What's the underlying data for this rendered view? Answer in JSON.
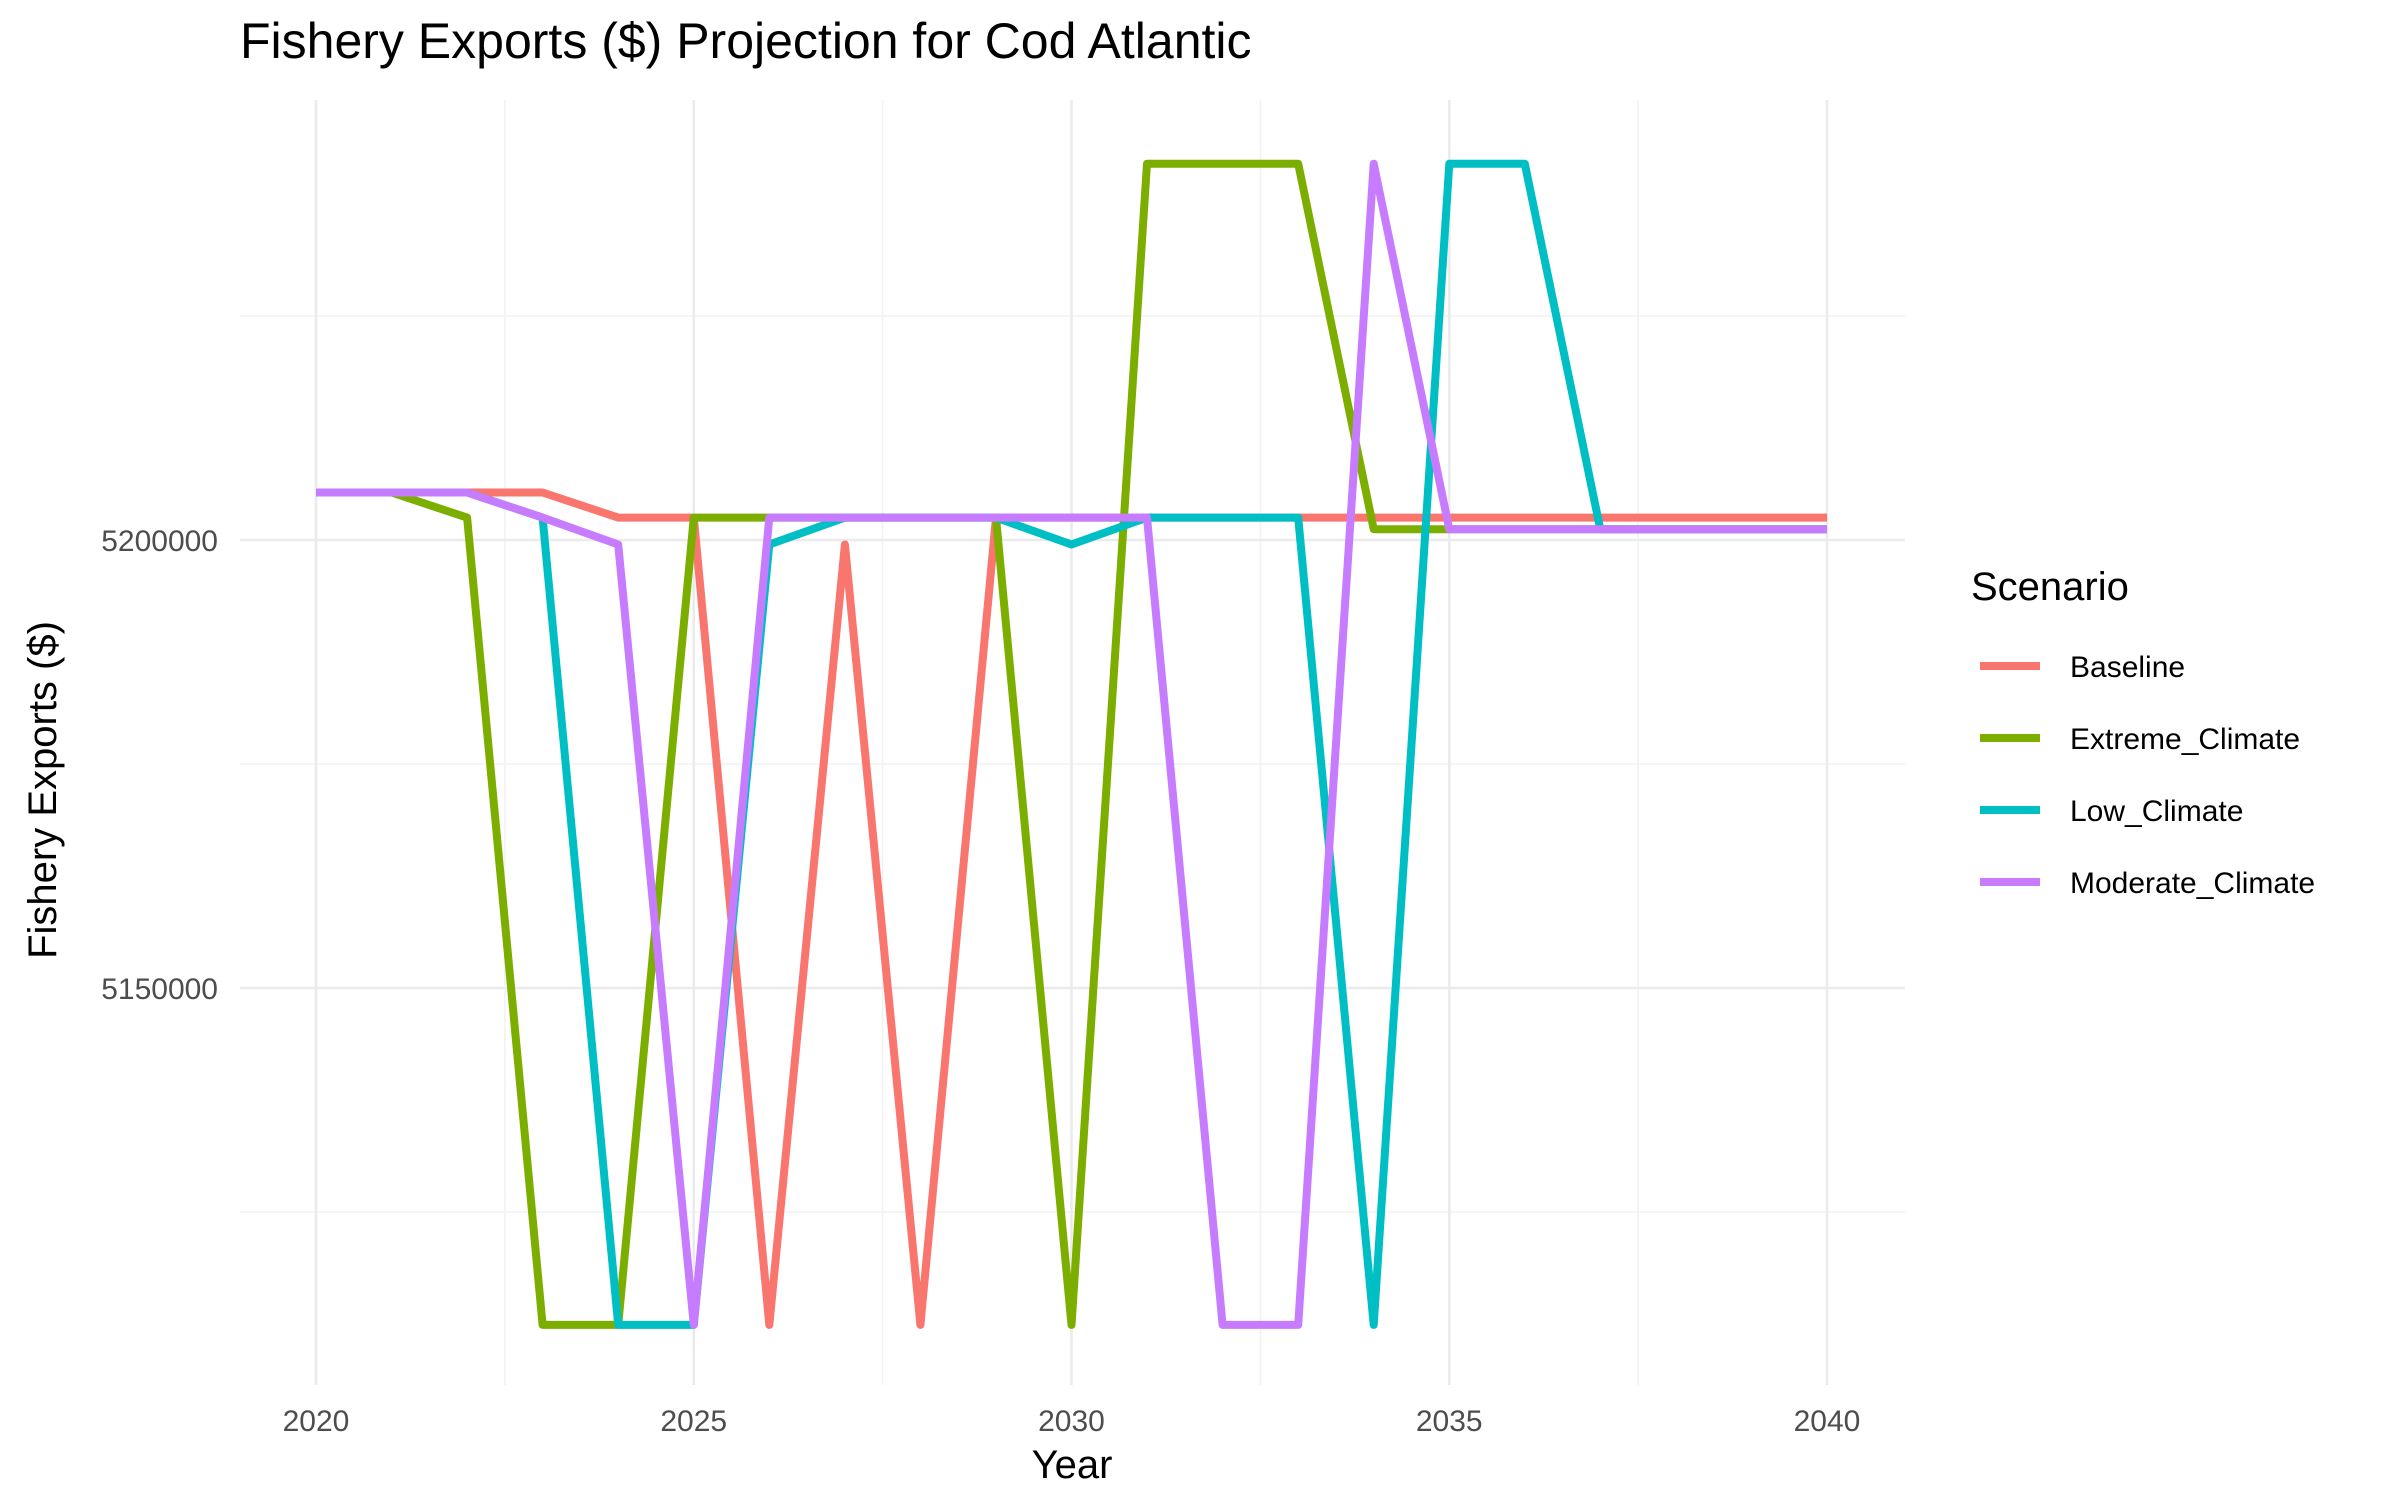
{
  "chart_data": {
    "type": "line",
    "title": "Fishery Exports ($) Projection for Cod Atlantic",
    "xlabel": "Year",
    "ylabel": "Fishery Exports ($)",
    "x_ticks": [
      "2020",
      "2025",
      "2030",
      "2035",
      "2040"
    ],
    "y_ticks": [
      "5150000",
      "5200000"
    ],
    "x": [
      2020,
      2021,
      2022,
      2023,
      2024,
      2025,
      2026,
      2027,
      2028,
      2029,
      2030,
      2031,
      2032,
      2033,
      2034,
      2035,
      2036,
      2037,
      2038,
      2039,
      2040
    ],
    "xlim": [
      2019,
      2041
    ],
    "ylim": [
      5099000,
      5242000
    ],
    "grid": true,
    "legend_position": "right",
    "legend_title": "Scenario",
    "series": [
      {
        "name": "Baseline",
        "color": "#F8766D",
        "values": [
          5205300,
          5205300,
          5205300,
          5205300,
          5202500,
          5202500,
          5112400,
          5199500,
          5112400,
          5202500,
          5202500,
          5202500,
          5202500,
          5202500,
          5202500,
          5202500,
          5202500,
          5202500,
          5202500,
          5202500,
          5202500
        ]
      },
      {
        "name": "Extreme_Climate",
        "color": "#7CAE00",
        "values": [
          5205300,
          5205300,
          5202500,
          5112400,
          5112400,
          5202500,
          5202500,
          5202500,
          5202500,
          5202500,
          5112400,
          5242000,
          5242000,
          5242000,
          5201200,
          5201200,
          5201200,
          5201200,
          5201200,
          5201200,
          5201200
        ]
      },
      {
        "name": "Low_Climate",
        "color": "#00BFC4",
        "values": [
          5205300,
          5205300,
          5205300,
          5202500,
          5112400,
          5112400,
          5199500,
          5202500,
          5202500,
          5202500,
          5199500,
          5202500,
          5202500,
          5202500,
          5112400,
          5242000,
          5242000,
          5201200,
          5201200,
          5201200,
          5201200
        ]
      },
      {
        "name": "Moderate_Climate",
        "color": "#C77CFF",
        "values": [
          5205300,
          5205300,
          5205300,
          5202500,
          5199500,
          5112400,
          5202500,
          5202500,
          5202500,
          5202500,
          5202500,
          5202500,
          5112400,
          5112400,
          5242000,
          5201200,
          5201200,
          5201200,
          5201200,
          5201200,
          5201200
        ]
      }
    ]
  }
}
